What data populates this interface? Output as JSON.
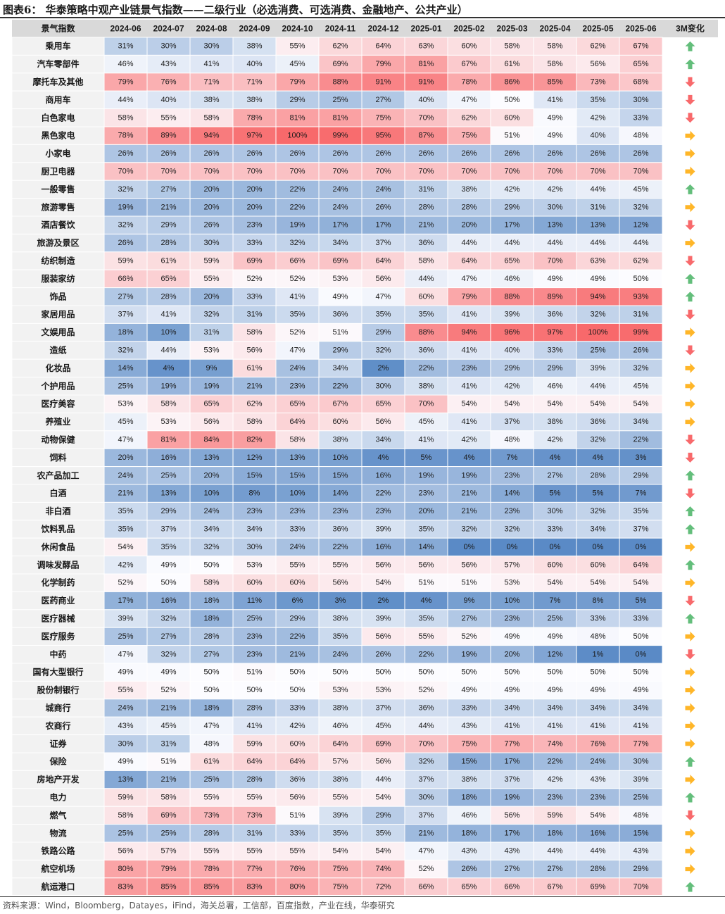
{
  "header": {
    "title": "图表6：  华泰策略中观产业链景气指数——二级行业（必选消费、可选消费、金融地产、公共产业）"
  },
  "footer": {
    "source": "资料来源：Wind，Bloomberg，Datayes，iFind，海关总署，工信部，百度指数，产业在线，华泰研究"
  },
  "colors": {
    "high": "#f8696b",
    "mid": "#fcfcff",
    "low": "#5a8ac6",
    "header_bg": "#d9d9d9",
    "up": "#63be7b",
    "down": "#f8696b",
    "flat": "#ffb628"
  },
  "chart_data": {
    "type": "heatmap",
    "corner_label": "景气指数",
    "change_label": "3M变化",
    "value_range": [
      0,
      100
    ],
    "columns": [
      "2024-06",
      "2024-07",
      "2024-08",
      "2024-09",
      "2024-10",
      "2024-11",
      "2024-12",
      "2025-01",
      "2025-02",
      "2025-03",
      "2025-04",
      "2025-05",
      "2025-06"
    ],
    "rows": [
      {
        "name": "乘用车",
        "values": [
          31,
          30,
          30,
          38,
          55,
          62,
          64,
          63,
          60,
          58,
          58,
          62,
          67
        ],
        "change": "up"
      },
      {
        "name": "汽车零部件",
        "values": [
          46,
          43,
          41,
          40,
          45,
          69,
          79,
          81,
          67,
          61,
          58,
          56,
          65
        ],
        "change": "up"
      },
      {
        "name": "摩托车及其他",
        "values": [
          79,
          76,
          71,
          71,
          79,
          88,
          91,
          91,
          78,
          86,
          85,
          73,
          68
        ],
        "change": "down"
      },
      {
        "name": "商用车",
        "values": [
          44,
          40,
          38,
          38,
          29,
          25,
          27,
          40,
          47,
          50,
          41,
          35,
          30
        ],
        "change": "down"
      },
      {
        "name": "白色家电",
        "values": [
          58,
          55,
          58,
          78,
          81,
          81,
          75,
          70,
          62,
          60,
          49,
          42,
          33
        ],
        "change": "down"
      },
      {
        "name": "黑色家电",
        "values": [
          78,
          89,
          94,
          97,
          100,
          99,
          95,
          87,
          75,
          51,
          49,
          40,
          48
        ],
        "change": "flat"
      },
      {
        "name": "小家电",
        "values": [
          26,
          26,
          26,
          26,
          26,
          26,
          26,
          26,
          26,
          26,
          26,
          26,
          26
        ],
        "change": "flat"
      },
      {
        "name": "厨卫电器",
        "values": [
          70,
          70,
          70,
          70,
          70,
          70,
          70,
          70,
          70,
          70,
          70,
          70,
          70
        ],
        "change": "flat"
      },
      {
        "name": "一般零售",
        "values": [
          32,
          27,
          20,
          20,
          22,
          24,
          24,
          31,
          38,
          42,
          42,
          44,
          45
        ],
        "change": "up"
      },
      {
        "name": "旅游零售",
        "values": [
          19,
          21,
          20,
          20,
          22,
          24,
          26,
          28,
          28,
          29,
          30,
          31,
          32
        ],
        "change": "flat"
      },
      {
        "name": "酒店餐饮",
        "values": [
          32,
          29,
          26,
          23,
          19,
          17,
          17,
          21,
          20,
          17,
          13,
          13,
          12
        ],
        "change": "down"
      },
      {
        "name": "旅游及景区",
        "values": [
          26,
          28,
          30,
          33,
          32,
          34,
          37,
          36,
          44,
          44,
          44,
          44,
          44
        ],
        "change": "flat"
      },
      {
        "name": "纺织制造",
        "values": [
          59,
          61,
          59,
          69,
          66,
          69,
          64,
          58,
          64,
          65,
          70,
          63,
          62
        ],
        "change": "down"
      },
      {
        "name": "服装家纺",
        "values": [
          66,
          65,
          55,
          52,
          52,
          53,
          56,
          44,
          47,
          46,
          49,
          49,
          50
        ],
        "change": "up"
      },
      {
        "name": "饰品",
        "values": [
          27,
          28,
          20,
          33,
          41,
          49,
          47,
          60,
          79,
          88,
          89,
          94,
          93
        ],
        "change": "up"
      },
      {
        "name": "家居用品",
        "values": [
          37,
          41,
          32,
          31,
          35,
          36,
          35,
          35,
          41,
          39,
          36,
          32,
          31
        ],
        "change": "down"
      },
      {
        "name": "文娱用品",
        "values": [
          18,
          10,
          31,
          58,
          52,
          51,
          29,
          88,
          94,
          96,
          97,
          100,
          99
        ],
        "change": "flat"
      },
      {
        "name": "造纸",
        "values": [
          32,
          44,
          53,
          56,
          47,
          29,
          32,
          36,
          41,
          40,
          33,
          25,
          26
        ],
        "change": "down"
      },
      {
        "name": "化妆品",
        "values": [
          14,
          4,
          9,
          61,
          24,
          34,
          2,
          22,
          23,
          29,
          29,
          39,
          32
        ],
        "change": "flat"
      },
      {
        "name": "个护用品",
        "values": [
          25,
          19,
          19,
          21,
          23,
          22,
          30,
          38,
          41,
          42,
          46,
          44,
          45
        ],
        "change": "flat"
      },
      {
        "name": "医疗美容",
        "values": [
          53,
          58,
          65,
          62,
          65,
          67,
          65,
          70,
          54,
          54,
          54,
          54,
          54
        ],
        "change": "flat"
      },
      {
        "name": "养殖业",
        "values": [
          45,
          53,
          56,
          58,
          64,
          60,
          56,
          45,
          41,
          37,
          38,
          36,
          34
        ],
        "change": "flat"
      },
      {
        "name": "动物保健",
        "values": [
          47,
          81,
          84,
          82,
          58,
          38,
          34,
          41,
          42,
          48,
          42,
          32,
          22
        ],
        "change": "down"
      },
      {
        "name": "饲料",
        "values": [
          20,
          16,
          13,
          12,
          13,
          10,
          4,
          5,
          4,
          7,
          4,
          4,
          3
        ],
        "change": "down"
      },
      {
        "name": "农产品加工",
        "values": [
          24,
          25,
          20,
          15,
          15,
          15,
          16,
          19,
          19,
          23,
          27,
          28,
          29
        ],
        "change": "up"
      },
      {
        "name": "白酒",
        "values": [
          21,
          13,
          10,
          8,
          10,
          14,
          22,
          23,
          21,
          14,
          5,
          5,
          7
        ],
        "change": "down"
      },
      {
        "name": "非白酒",
        "values": [
          35,
          29,
          24,
          23,
          23,
          23,
          23,
          20,
          21,
          23,
          30,
          32,
          35
        ],
        "change": "up"
      },
      {
        "name": "饮料乳品",
        "values": [
          35,
          37,
          34,
          34,
          33,
          36,
          39,
          35,
          32,
          32,
          33,
          34,
          37
        ],
        "change": "up"
      },
      {
        "name": "休闲食品",
        "values": [
          54,
          35,
          32,
          30,
          24,
          22,
          16,
          14,
          0,
          0,
          0,
          0,
          0
        ],
        "change": "flat"
      },
      {
        "name": "调味发酵品",
        "values": [
          42,
          49,
          50,
          53,
          55,
          55,
          56,
          56,
          56,
          57,
          60,
          60,
          64
        ],
        "change": "up"
      },
      {
        "name": "化学制药",
        "values": [
          52,
          50,
          58,
          60,
          60,
          56,
          54,
          51,
          51,
          53,
          54,
          54,
          54
        ],
        "change": "flat"
      },
      {
        "name": "医药商业",
        "values": [
          17,
          16,
          18,
          11,
          6,
          3,
          2,
          4,
          9,
          10,
          7,
          8,
          5
        ],
        "change": "down"
      },
      {
        "name": "医疗器械",
        "values": [
          39,
          32,
          18,
          25,
          29,
          38,
          39,
          35,
          27,
          23,
          25,
          33,
          33
        ],
        "change": "up"
      },
      {
        "name": "医疗服务",
        "values": [
          25,
          27,
          28,
          23,
          22,
          35,
          56,
          55,
          52,
          49,
          49,
          48,
          50
        ],
        "change": "flat"
      },
      {
        "name": "中药",
        "values": [
          47,
          32,
          27,
          23,
          21,
          24,
          26,
          22,
          19,
          20,
          12,
          1,
          0
        ],
        "change": "down"
      },
      {
        "name": "国有大型银行",
        "values": [
          49,
          49,
          50,
          51,
          50,
          50,
          50,
          50,
          50,
          50,
          50,
          50,
          50
        ],
        "change": "flat"
      },
      {
        "name": "股份制银行",
        "values": [
          55,
          52,
          50,
          50,
          50,
          53,
          53,
          52,
          49,
          49,
          49,
          49,
          49
        ],
        "change": "flat"
      },
      {
        "name": "城商行",
        "values": [
          24,
          21,
          18,
          28,
          33,
          38,
          37,
          36,
          33,
          34,
          34,
          34,
          34
        ],
        "change": "flat"
      },
      {
        "name": "农商行",
        "values": [
          43,
          45,
          47,
          41,
          42,
          46,
          45,
          44,
          43,
          41,
          41,
          41,
          41
        ],
        "change": "flat"
      },
      {
        "name": "证券",
        "values": [
          30,
          31,
          48,
          59,
          60,
          64,
          69,
          70,
          75,
          77,
          74,
          76,
          77
        ],
        "change": "flat"
      },
      {
        "name": "保险",
        "values": [
          49,
          51,
          61,
          64,
          64,
          57,
          56,
          32,
          15,
          17,
          22,
          24,
          30
        ],
        "change": "up"
      },
      {
        "name": "房地产开发",
        "values": [
          13,
          21,
          25,
          28,
          36,
          38,
          44,
          37,
          38,
          37,
          42,
          43,
          39
        ],
        "change": "flat"
      },
      {
        "name": "电力",
        "values": [
          59,
          58,
          55,
          55,
          56,
          55,
          54,
          30,
          18,
          19,
          23,
          23,
          25
        ],
        "change": "up"
      },
      {
        "name": "燃气",
        "values": [
          58,
          69,
          73,
          73,
          51,
          39,
          29,
          37,
          46,
          56,
          59,
          54,
          48
        ],
        "change": "down"
      },
      {
        "name": "物流",
        "values": [
          25,
          25,
          28,
          31,
          33,
          35,
          35,
          21,
          18,
          17,
          18,
          16,
          15
        ],
        "change": "flat"
      },
      {
        "name": "铁路公路",
        "values": [
          56,
          57,
          55,
          55,
          55,
          54,
          54,
          47,
          43,
          43,
          44,
          44,
          43
        ],
        "change": "flat"
      },
      {
        "name": "航空机场",
        "values": [
          80,
          79,
          78,
          77,
          76,
          75,
          74,
          52,
          26,
          27,
          27,
          28,
          29
        ],
        "change": "flat"
      },
      {
        "name": "航运港口",
        "values": [
          83,
          85,
          85,
          83,
          80,
          75,
          72,
          66,
          65,
          66,
          67,
          69,
          70
        ],
        "change": "up"
      }
    ]
  }
}
